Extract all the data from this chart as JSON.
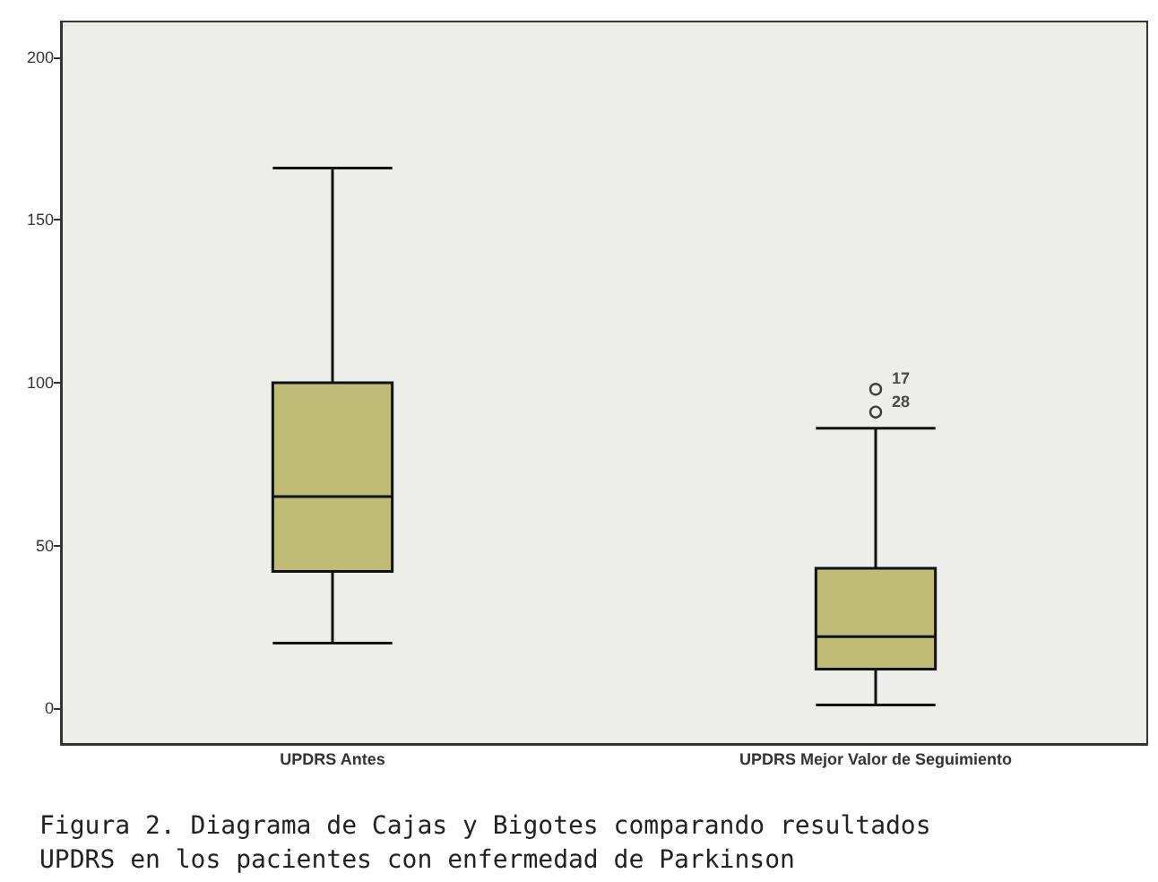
{
  "chart_data": {
    "type": "box",
    "categories": [
      "UPDRS Antes",
      "UPDRS Mejor Valor de Seguimiento"
    ],
    "boxes": [
      {
        "low": 20,
        "q1": 42,
        "median": 65,
        "q3": 100,
        "high": 166
      },
      {
        "low": 1,
        "q1": 12,
        "median": 22,
        "q3": 43,
        "high": 86,
        "outliers": [
          98,
          91
        ]
      }
    ],
    "color": "#c1bb78",
    "ylim": [
      -11,
      211
    ],
    "yticks": [
      0,
      50,
      100,
      150,
      200
    ],
    "grid": false,
    "annotations": [
      "17",
      "28",
      "Figura 2. Diagrama de Cajas y Bigotes comparando resultados",
      "UPDRS en los pacientes con enfermedad de Parkinson"
    ]
  }
}
